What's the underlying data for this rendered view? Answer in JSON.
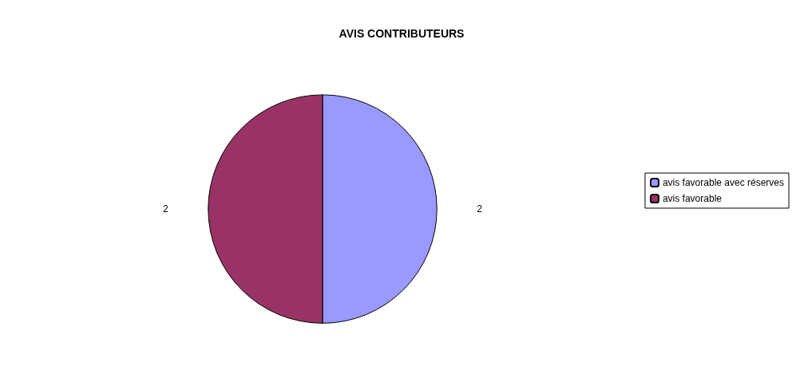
{
  "chart_data": {
    "type": "pie",
    "title": "AVIS CONTRIBUTEURS",
    "categories": [
      "avis favorable avec réserves",
      "avis favorable"
    ],
    "values": [
      2,
      2
    ],
    "colors": [
      "#9999ff",
      "#993366"
    ],
    "data_labels": true,
    "legend": "right"
  }
}
